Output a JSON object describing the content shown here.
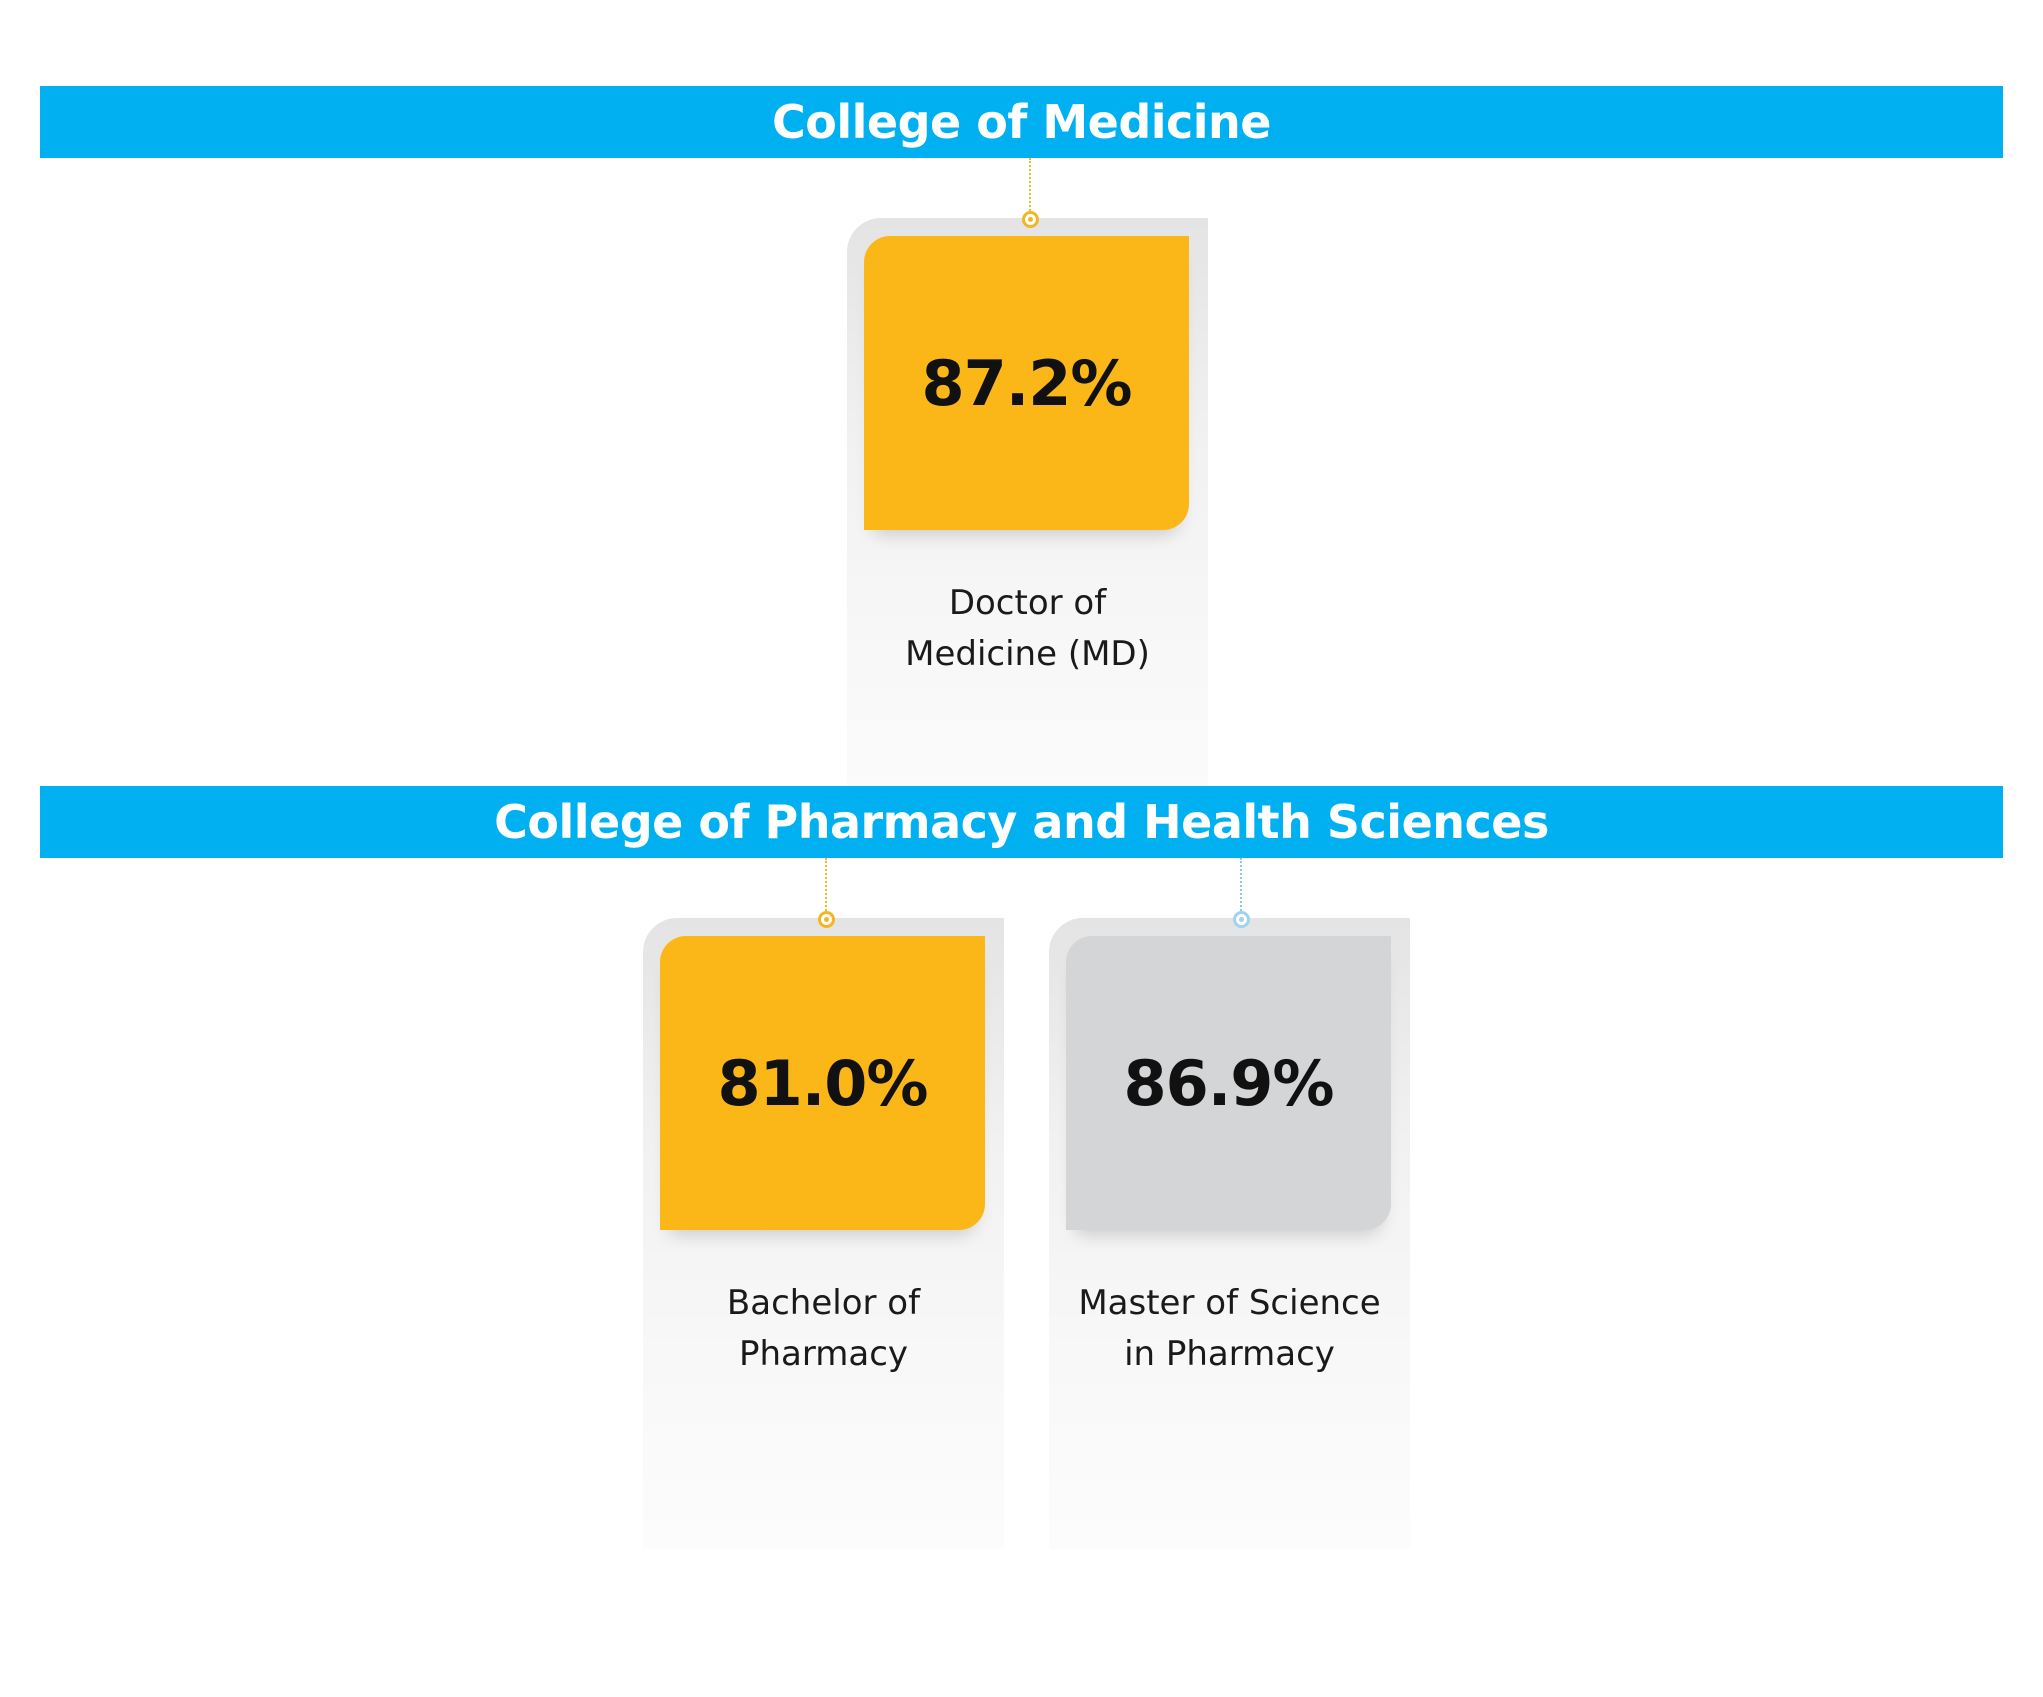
{
  "colors": {
    "banner": "#00b0f0",
    "banner_text": "#ffffff",
    "tile_gold": "#fbb717",
    "tile_gray": "#d3d5d7",
    "connector_gold": "#f4b522",
    "connector_blue": "#8cc9e8"
  },
  "sections": [
    {
      "title": "College of Medicine",
      "programs": [
        {
          "value": "87.2%",
          "label": "Doctor of\nMedicine (MD)",
          "tile_color": "gold"
        }
      ]
    },
    {
      "title": "College of Pharmacy and Health Sciences",
      "programs": [
        {
          "value": "81.0%",
          "label": "Bachelor of\nPharmacy",
          "tile_color": "gold"
        },
        {
          "value": "86.9%",
          "label": "Master of Science\nin Pharmacy",
          "tile_color": "gray"
        }
      ]
    }
  ]
}
